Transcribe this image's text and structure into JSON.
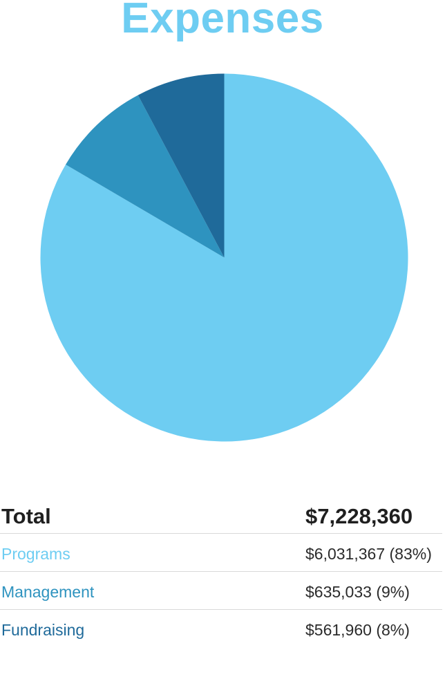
{
  "chart_data": {
    "type": "pie",
    "title": "Expenses",
    "categories": [
      "Programs",
      "Management",
      "Fundraising"
    ],
    "values": [
      6031367,
      635033,
      561960
    ],
    "colors": [
      "#6ecdf2",
      "#2e93bf",
      "#1f6a9a"
    ],
    "start_angle_deg": 0,
    "direction": "clockwise"
  },
  "summary": {
    "total_label": "Total",
    "total_value": "$7,228,360",
    "rows": [
      {
        "label": "Programs",
        "value": "$6,031,367 (83%)",
        "color": "#6ecdf2"
      },
      {
        "label": "Management",
        "value": "$635,033 (9%)",
        "color": "#2e93bf"
      },
      {
        "label": "Fundraising",
        "value": "$561,960 (8%)",
        "color": "#1f6a9a"
      }
    ]
  }
}
